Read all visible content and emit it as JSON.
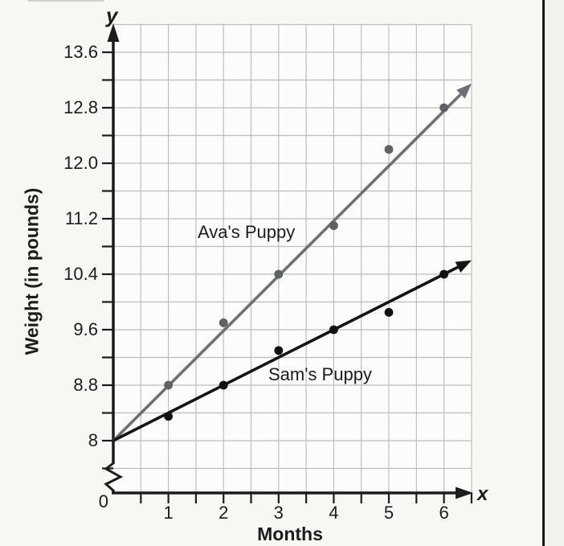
{
  "chart_data": {
    "type": "scatter",
    "title": "",
    "xlabel": "Months",
    "ylabel": "Weight (in pounds)",
    "x_axis_symbol": "x",
    "y_axis_symbol": "y",
    "origin_label": "0",
    "grid": true,
    "axis_break_on_y": true,
    "xlim": [
      0,
      6.5
    ],
    "ylim": [
      8,
      14.0
    ],
    "x_tick_step_minor": 0.5,
    "y_tick_step_minor": 0.4,
    "x_ticks": [
      1,
      2,
      3,
      4,
      5,
      6
    ],
    "x_tick_labels": [
      "1",
      "2",
      "3",
      "4",
      "5",
      "6"
    ],
    "y_ticks": [
      8,
      8.8,
      9.6,
      10.4,
      11.2,
      12.0,
      12.8,
      13.6
    ],
    "y_tick_labels": [
      "8",
      "8.8",
      "9.6",
      "10.4",
      "11.2",
      "12.0",
      "12.8",
      "13.6"
    ],
    "colors": {
      "grid": "#bcbdbf",
      "axis": "#1c1c1c",
      "ava_line": "#6e7174",
      "ava_point": "#5e6265",
      "sam_line": "#141414",
      "sam_point": "#121212"
    },
    "series": [
      {
        "name": "Ava's Puppy",
        "points": [
          [
            1,
            8.8
          ],
          [
            2,
            9.7
          ],
          [
            3,
            10.4
          ],
          [
            4,
            11.1
          ],
          [
            5,
            12.2
          ],
          [
            6,
            12.8
          ]
        ],
        "trend_line": {
          "from": [
            0,
            8
          ],
          "to": [
            6.5,
            13.15
          ]
        }
      },
      {
        "name": "Sam's Puppy",
        "points": [
          [
            1,
            8.35
          ],
          [
            2,
            8.8
          ],
          [
            3,
            9.3
          ],
          [
            4,
            9.6
          ],
          [
            5,
            9.85
          ],
          [
            6,
            10.4
          ]
        ],
        "trend_line": {
          "from": [
            0,
            8
          ],
          "to": [
            6.5,
            10.6
          ]
        }
      }
    ]
  }
}
